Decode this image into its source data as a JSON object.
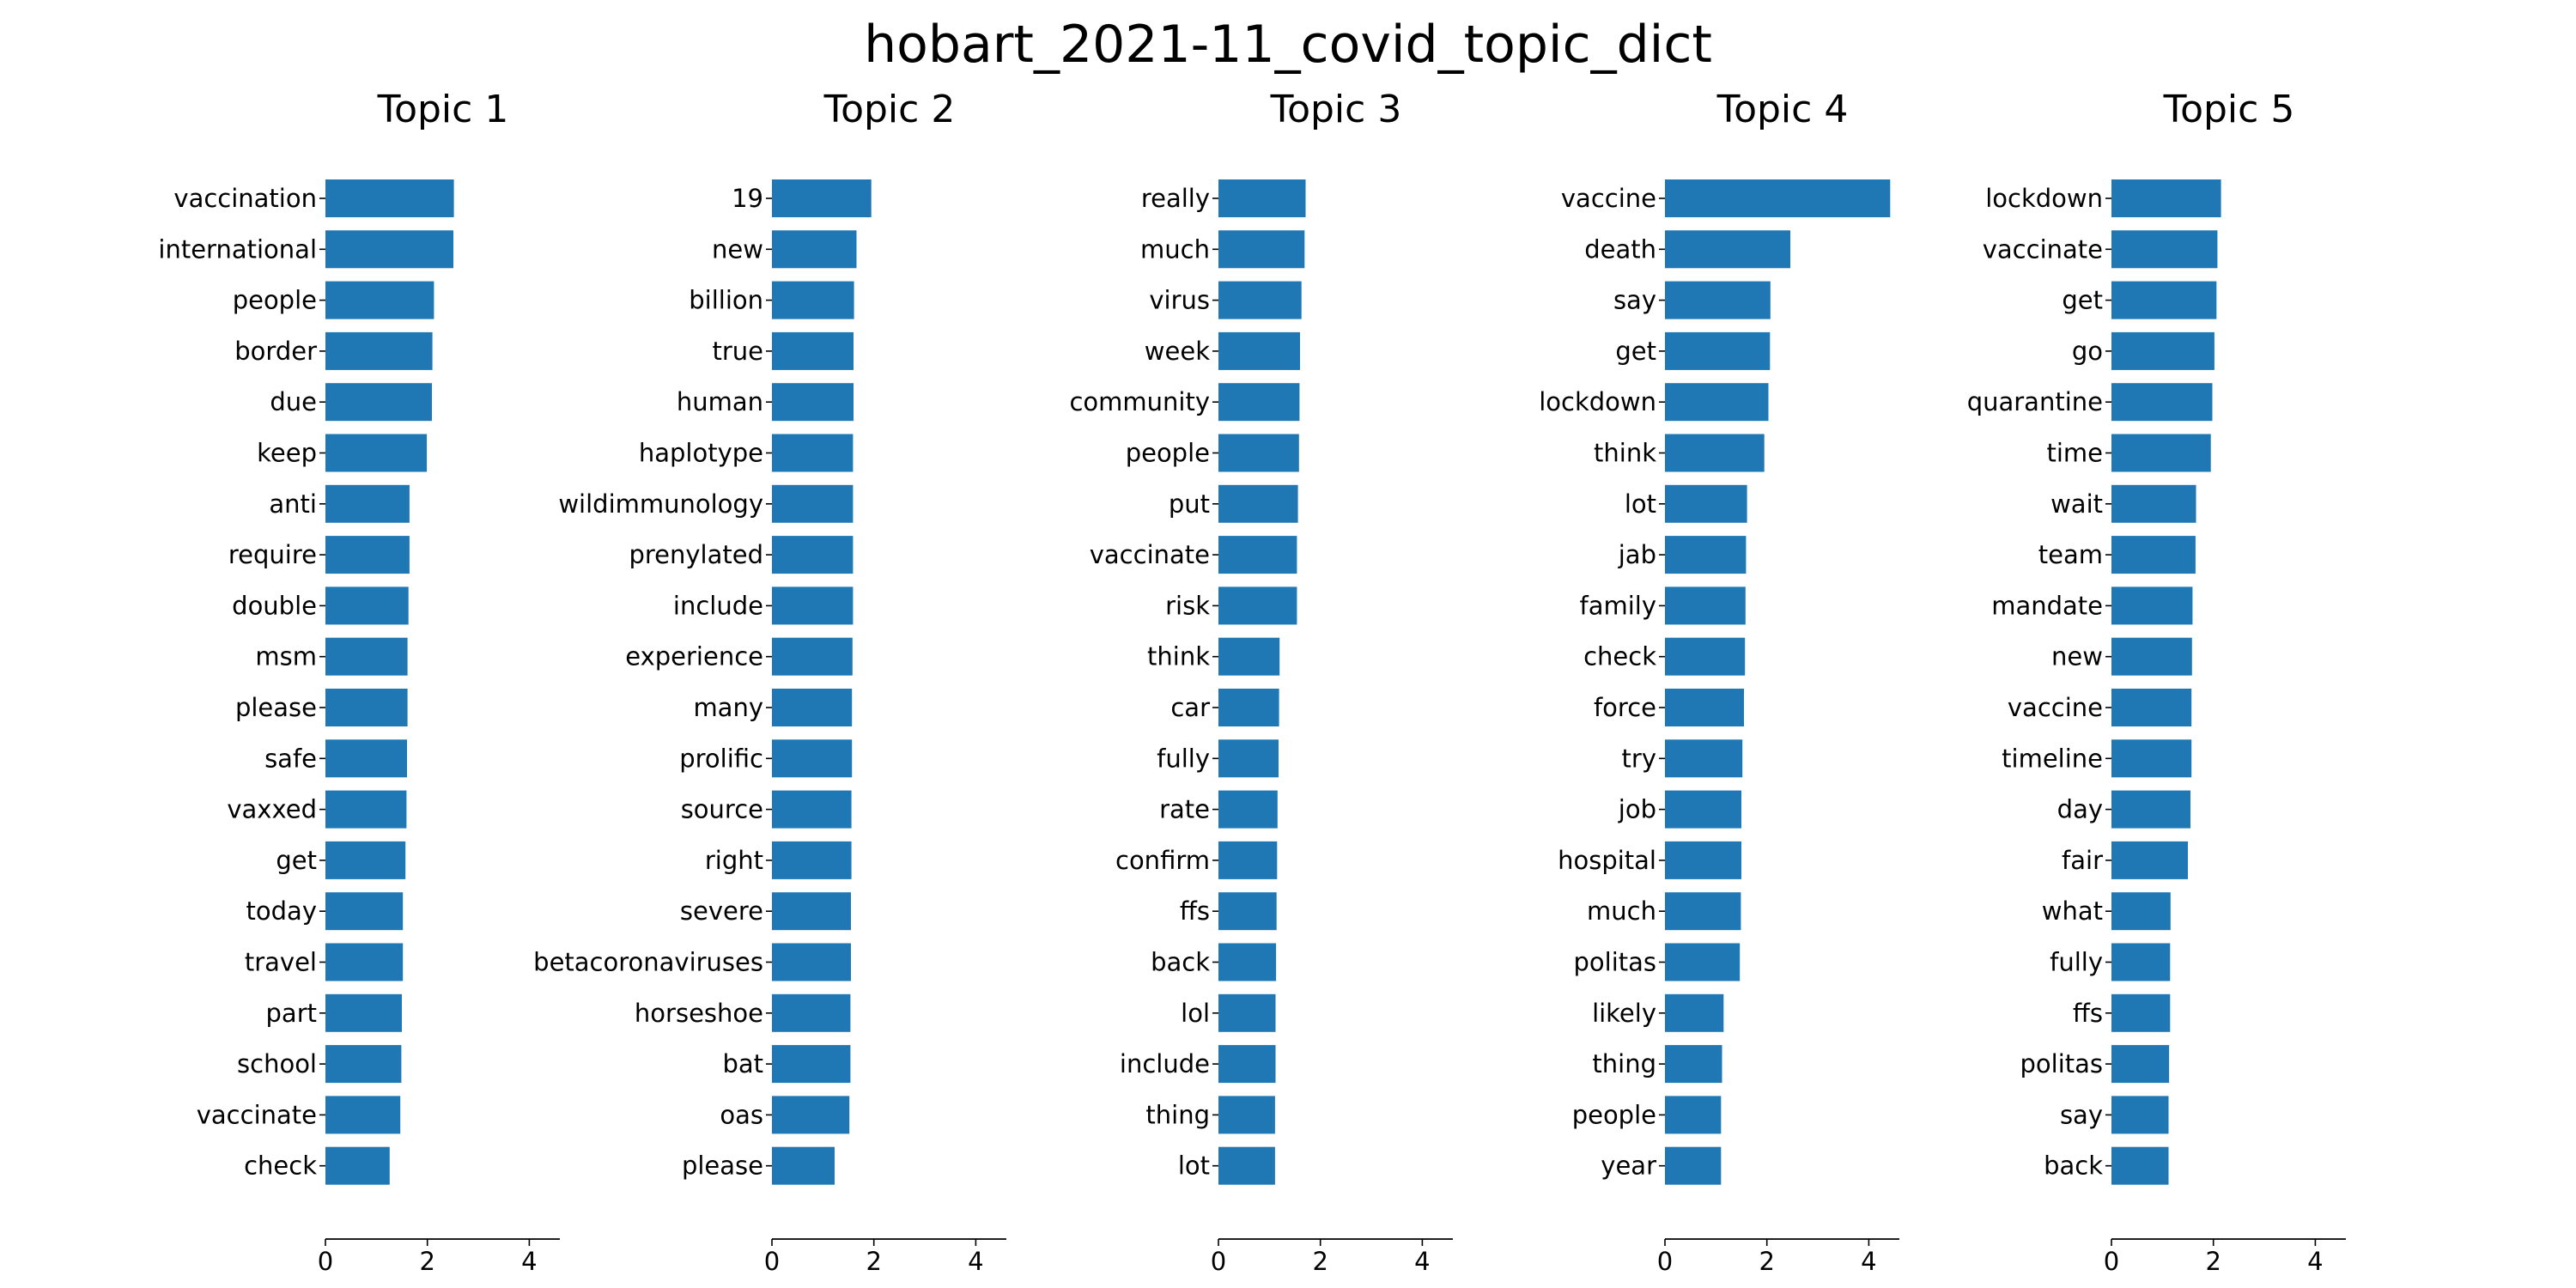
{
  "figure": {
    "title": "hobart_2021-11_covid_topic_dict",
    "bar_color": "#1f77b4"
  },
  "chart_data": [
    {
      "type": "bar",
      "orientation": "horizontal",
      "title": "Topic 1",
      "xlim": [
        0,
        4.6
      ],
      "xticks": [
        0,
        2,
        4
      ],
      "grid": false,
      "categories": [
        "vaccination",
        "international",
        "people",
        "border",
        "due",
        "keep",
        "anti",
        "require",
        "double",
        "msm",
        "please",
        "safe",
        "vaxxed",
        "get",
        "today",
        "travel",
        "part",
        "school",
        "vaccinate",
        "check"
      ],
      "values": [
        2.52,
        2.51,
        2.13,
        2.1,
        2.09,
        1.99,
        1.65,
        1.65,
        1.63,
        1.61,
        1.61,
        1.6,
        1.59,
        1.57,
        1.52,
        1.52,
        1.5,
        1.49,
        1.47,
        1.26
      ]
    },
    {
      "type": "bar",
      "orientation": "horizontal",
      "title": "Topic 2",
      "xlim": [
        0,
        4.6
      ],
      "xticks": [
        0,
        2,
        4
      ],
      "grid": false,
      "categories": [
        "19",
        "new",
        "billion",
        "true",
        "human",
        "haplotype",
        "wildimmunology",
        "prenylated",
        "include",
        "experience",
        "many",
        "prolific",
        "source",
        "right",
        "severe",
        "betacoronaviruses",
        "horseshoe",
        "bat",
        "oas",
        "please"
      ],
      "values": [
        1.95,
        1.66,
        1.61,
        1.6,
        1.6,
        1.59,
        1.59,
        1.59,
        1.59,
        1.58,
        1.57,
        1.57,
        1.56,
        1.56,
        1.55,
        1.55,
        1.54,
        1.54,
        1.52,
        1.23
      ]
    },
    {
      "type": "bar",
      "orientation": "horizontal",
      "title": "Topic 3",
      "xlim": [
        0,
        4.6
      ],
      "xticks": [
        0,
        2,
        4
      ],
      "grid": false,
      "categories": [
        "really",
        "much",
        "virus",
        "week",
        "community",
        "people",
        "put",
        "vaccinate",
        "risk",
        "think",
        "car",
        "fully",
        "rate",
        "confirm",
        "ffs",
        "back",
        "lol",
        "include",
        "thing",
        "lot"
      ],
      "values": [
        1.71,
        1.69,
        1.63,
        1.6,
        1.59,
        1.58,
        1.56,
        1.54,
        1.54,
        1.2,
        1.19,
        1.18,
        1.16,
        1.15,
        1.14,
        1.13,
        1.12,
        1.12,
        1.11,
        1.11
      ]
    },
    {
      "type": "bar",
      "orientation": "horizontal",
      "title": "Topic 4",
      "xlim": [
        0,
        4.6
      ],
      "xticks": [
        0,
        2,
        4
      ],
      "grid": false,
      "categories": [
        "vaccine",
        "death",
        "say",
        "get",
        "lockdown",
        "think",
        "lot",
        "jab",
        "family",
        "check",
        "force",
        "try",
        "job",
        "hospital",
        "much",
        "politas",
        "likely",
        "thing",
        "people",
        "year"
      ],
      "values": [
        4.42,
        2.46,
        2.07,
        2.06,
        2.03,
        1.95,
        1.61,
        1.59,
        1.58,
        1.57,
        1.55,
        1.52,
        1.5,
        1.5,
        1.49,
        1.47,
        1.15,
        1.12,
        1.1,
        1.1
      ]
    },
    {
      "type": "bar",
      "orientation": "horizontal",
      "title": "Topic 5",
      "xlim": [
        0,
        4.6
      ],
      "xticks": [
        0,
        2,
        4
      ],
      "grid": false,
      "categories": [
        "lockdown",
        "vaccinate",
        "get",
        "go",
        "quarantine",
        "time",
        "wait",
        "team",
        "mandate",
        "new",
        "vaccine",
        "timeline",
        "day",
        "fair",
        "what",
        "fully",
        "ffs",
        "politas",
        "say",
        "back"
      ],
      "values": [
        2.15,
        2.08,
        2.06,
        2.02,
        1.98,
        1.95,
        1.66,
        1.65,
        1.59,
        1.58,
        1.57,
        1.57,
        1.55,
        1.5,
        1.16,
        1.15,
        1.15,
        1.13,
        1.12,
        1.12
      ]
    }
  ]
}
